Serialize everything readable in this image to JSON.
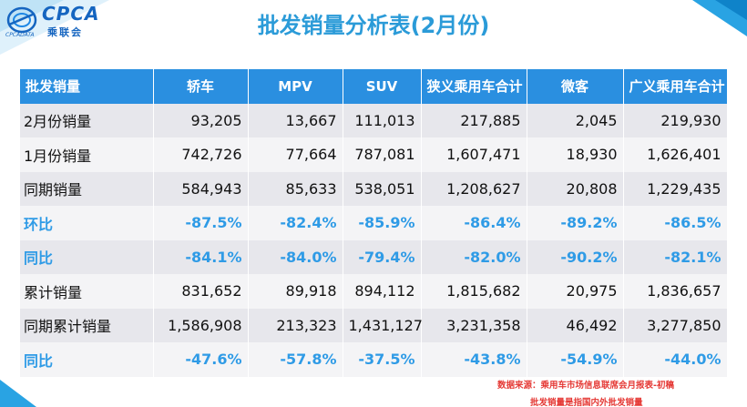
{
  "logo": {
    "text": "CPCA",
    "cn": "乘联会",
    "sub": "CPCADATA"
  },
  "title": "批发销量分析表(2月份)",
  "colors": {
    "header_bg": "#2a8fe0",
    "percent_text": "#2f9be6",
    "note_text": "#e53935",
    "title": "#2b9bd8"
  },
  "table": {
    "headers": [
      "批发销量",
      "轿车",
      "MPV",
      "SUV",
      "狭义乘用车合计",
      "微客",
      "广义乘用车合计"
    ],
    "rows": [
      {
        "label": "2月份销量",
        "values": [
          "93,205",
          "13,667",
          "111,013",
          "217,885",
          "2,045",
          "219,930"
        ]
      },
      {
        "label": "1月份销量",
        "values": [
          "742,726",
          "77,664",
          "787,081",
          "1,607,471",
          "18,930",
          "1,626,401"
        ]
      },
      {
        "label": "同期销量",
        "values": [
          "584,943",
          "85,633",
          "538,051",
          "1,208,627",
          "20,808",
          "1,229,435"
        ]
      },
      {
        "label": "环比",
        "values": [
          "-87.5%",
          "-82.4%",
          "-85.9%",
          "-86.4%",
          "-89.2%",
          "-86.5%"
        ]
      },
      {
        "label": "同比",
        "values": [
          "-84.1%",
          "-84.0%",
          "-79.4%",
          "-82.0%",
          "-90.2%",
          "-82.1%"
        ]
      },
      {
        "label": "累计销量",
        "values": [
          "831,652",
          "89,918",
          "894,112",
          "1,815,682",
          "20,975",
          "1,836,657"
        ]
      },
      {
        "label": "同期累计销量",
        "values": [
          "1,586,908",
          "213,323",
          "1,431,127",
          "3,231,358",
          "46,492",
          "3,277,850"
        ]
      },
      {
        "label": "同比",
        "values": [
          "-47.6%",
          "-57.8%",
          "-37.5%",
          "-43.8%",
          "-54.9%",
          "-44.0%"
        ]
      }
    ]
  },
  "notes": {
    "source": "数据来源：乘用车市场信息联席会月报表-初稿",
    "definition": "批发销量是指国内外批发销量"
  }
}
